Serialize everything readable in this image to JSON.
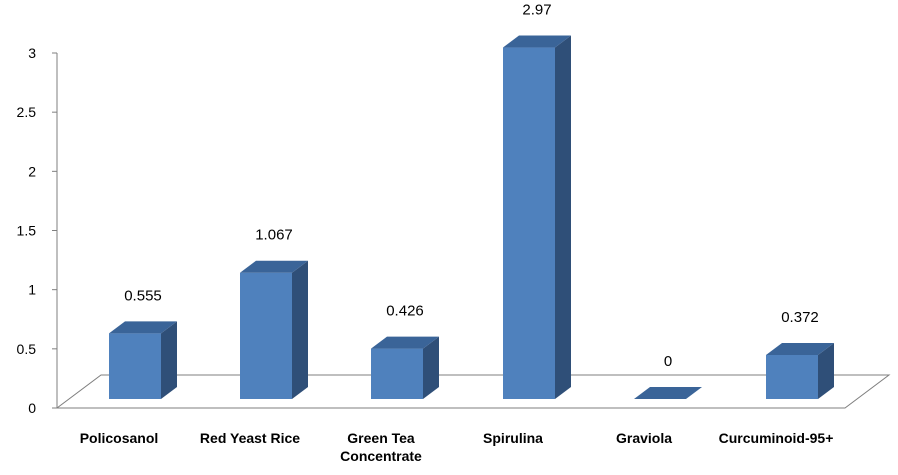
{
  "chart_data": {
    "type": "bar",
    "style": "3d-column",
    "title": "",
    "xlabel": "",
    "ylabel": "",
    "ylim": [
      0,
      3
    ],
    "yticks": [
      "0",
      "0.5",
      "1",
      "1.5",
      "2",
      "2.5",
      "3"
    ],
    "grid": false,
    "legend": "none",
    "categories": [
      [
        "Policosanol"
      ],
      [
        "Red Yeast Rice"
      ],
      [
        "Green Tea",
        "Concentrate"
      ],
      [
        "Spirulina"
      ],
      [
        "Graviola"
      ],
      [
        "Curcuminoid-95+"
      ]
    ],
    "values": [
      0.555,
      1.067,
      0.426,
      2.97,
      0,
      0.372
    ],
    "data_labels": [
      "0.555",
      "1.067",
      "0.426",
      "2.97",
      "0",
      "0.372"
    ],
    "colors": {
      "front": "#4f81bd",
      "side": "#2f4f78",
      "top": "#3a6498",
      "axis": "#7f7f7f"
    }
  }
}
